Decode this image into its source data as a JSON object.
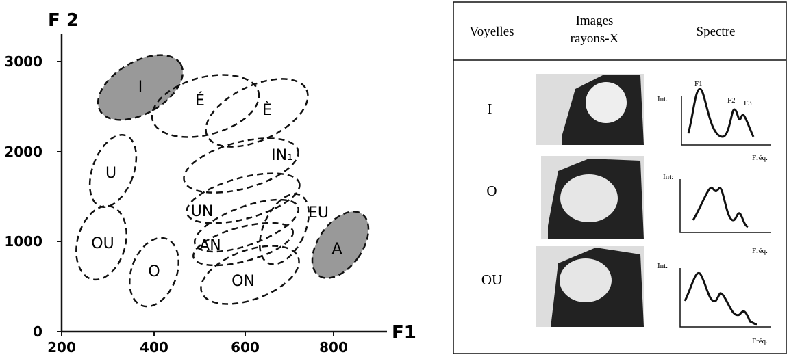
{
  "chart": {
    "axis_labels": {
      "y": "F 2",
      "x": "F1"
    },
    "xticks": [
      "200",
      "400",
      "600",
      "800"
    ],
    "yticks": [
      "0",
      "1000",
      "2000",
      "3000"
    ],
    "regions": [
      {
        "label": "I"
      },
      {
        "label": "É"
      },
      {
        "label": "È"
      },
      {
        "label": "IN₁"
      },
      {
        "label": "U"
      },
      {
        "label": "UN"
      },
      {
        "label": "EU"
      },
      {
        "label": "AN"
      },
      {
        "label": "OU"
      },
      {
        "label": "O"
      },
      {
        "label": "A"
      },
      {
        "label": "ON"
      }
    ]
  },
  "table": {
    "header": {
      "vowels": "Voyelles",
      "images": [
        "Images",
        "rayons-X"
      ],
      "spectrum": "Spectre"
    },
    "rows": [
      {
        "vowel": "I",
        "spectrum": {
          "y_label": "Int.",
          "x_label": "Fréq.",
          "peaks": [
            "F1",
            "F2",
            "F3"
          ]
        }
      },
      {
        "vowel": "O",
        "spectrum": {
          "y_label": "Int:",
          "x_label": "Fréq."
        }
      },
      {
        "vowel": "OU",
        "spectrum": {
          "y_label": "Int.",
          "x_label": "Fréq."
        }
      }
    ]
  }
}
